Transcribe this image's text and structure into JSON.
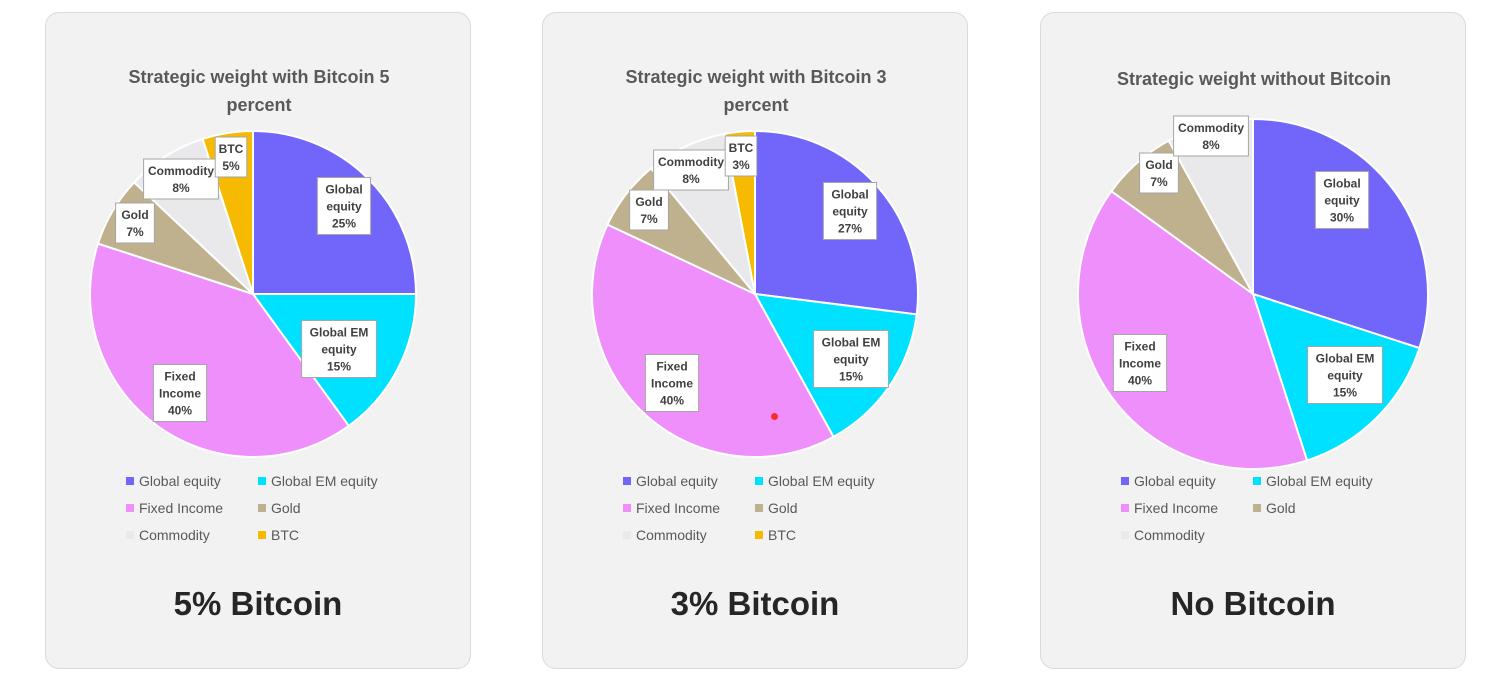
{
  "colors": {
    "Global equity": "#7166f9",
    "Global EM equity": "#00e1ff",
    "Fixed Income": "#ee8ffb",
    "Gold": "#bfb08e",
    "Commodity": "#e9e9ec",
    "BTC": "#f6bb00"
  },
  "chart_data": [
    {
      "type": "pie",
      "title": "Strategic weight with Bitcoin 5 percent",
      "caption": "5% Bitcoin",
      "categories": [
        "Global equity",
        "Global EM equity",
        "Fixed Income",
        "Gold",
        "Commodity",
        "BTC"
      ],
      "values": [
        25,
        15,
        40,
        7,
        8,
        5
      ],
      "data_labels": [
        {
          "name": "Global equity",
          "lines": [
            "Global",
            "equity",
            "25%"
          ]
        },
        {
          "name": "Global EM equity",
          "lines": [
            "Global EM",
            "equity",
            "15%"
          ]
        },
        {
          "name": "Fixed Income",
          "lines": [
            "Fixed",
            "Income",
            "40%"
          ]
        },
        {
          "name": "Gold",
          "lines": [
            "Gold",
            "7%"
          ]
        },
        {
          "name": "Commodity",
          "lines": [
            "Commodity",
            "8%"
          ]
        },
        {
          "name": "BTC",
          "lines": [
            "BTC",
            "5%"
          ]
        }
      ],
      "legend": [
        "Global equity",
        "Global EM equity",
        "Fixed Income",
        "Gold",
        "Commodity",
        "BTC"
      ]
    },
    {
      "type": "pie",
      "title": "Strategic weight with Bitcoin 3 percent",
      "caption": "3% Bitcoin",
      "categories": [
        "Global equity",
        "Global EM equity",
        "Fixed Income",
        "Gold",
        "Commodity",
        "BTC"
      ],
      "values": [
        27,
        15,
        40,
        7,
        8,
        3
      ],
      "data_labels": [
        {
          "name": "Global equity",
          "lines": [
            "Global",
            "equity",
            "27%"
          ]
        },
        {
          "name": "Global EM equity",
          "lines": [
            "Global EM",
            "equity",
            "15%"
          ]
        },
        {
          "name": "Fixed Income",
          "lines": [
            "Fixed",
            "Income",
            "40%"
          ]
        },
        {
          "name": "Gold",
          "lines": [
            "Gold",
            "7%"
          ]
        },
        {
          "name": "Commodity",
          "lines": [
            "Commodity",
            "8%"
          ]
        },
        {
          "name": "BTC",
          "lines": [
            "BTC",
            "3%"
          ]
        }
      ],
      "legend": [
        "Global equity",
        "Global EM equity",
        "Fixed Income",
        "Gold",
        "Commodity",
        "BTC"
      ]
    },
    {
      "type": "pie",
      "title": "Strategic weight without Bitcoin",
      "caption": "No Bitcoin",
      "categories": [
        "Global equity",
        "Global EM equity",
        "Fixed Income",
        "Gold",
        "Commodity"
      ],
      "values": [
        30,
        15,
        40,
        7,
        8
      ],
      "data_labels": [
        {
          "name": "Global equity",
          "lines": [
            "Global",
            "equity",
            "30%"
          ]
        },
        {
          "name": "Global EM equity",
          "lines": [
            "Global EM",
            "equity",
            "15%"
          ]
        },
        {
          "name": "Fixed Income",
          "lines": [
            "Fixed",
            "Income",
            "40%"
          ]
        },
        {
          "name": "Gold",
          "lines": [
            "Gold",
            "7%"
          ]
        },
        {
          "name": "Commodity",
          "lines": [
            "Commodity",
            "8%"
          ]
        }
      ],
      "legend": [
        "Global equity",
        "Global EM equity",
        "Fixed Income",
        "Gold",
        "Commodity"
      ]
    }
  ]
}
